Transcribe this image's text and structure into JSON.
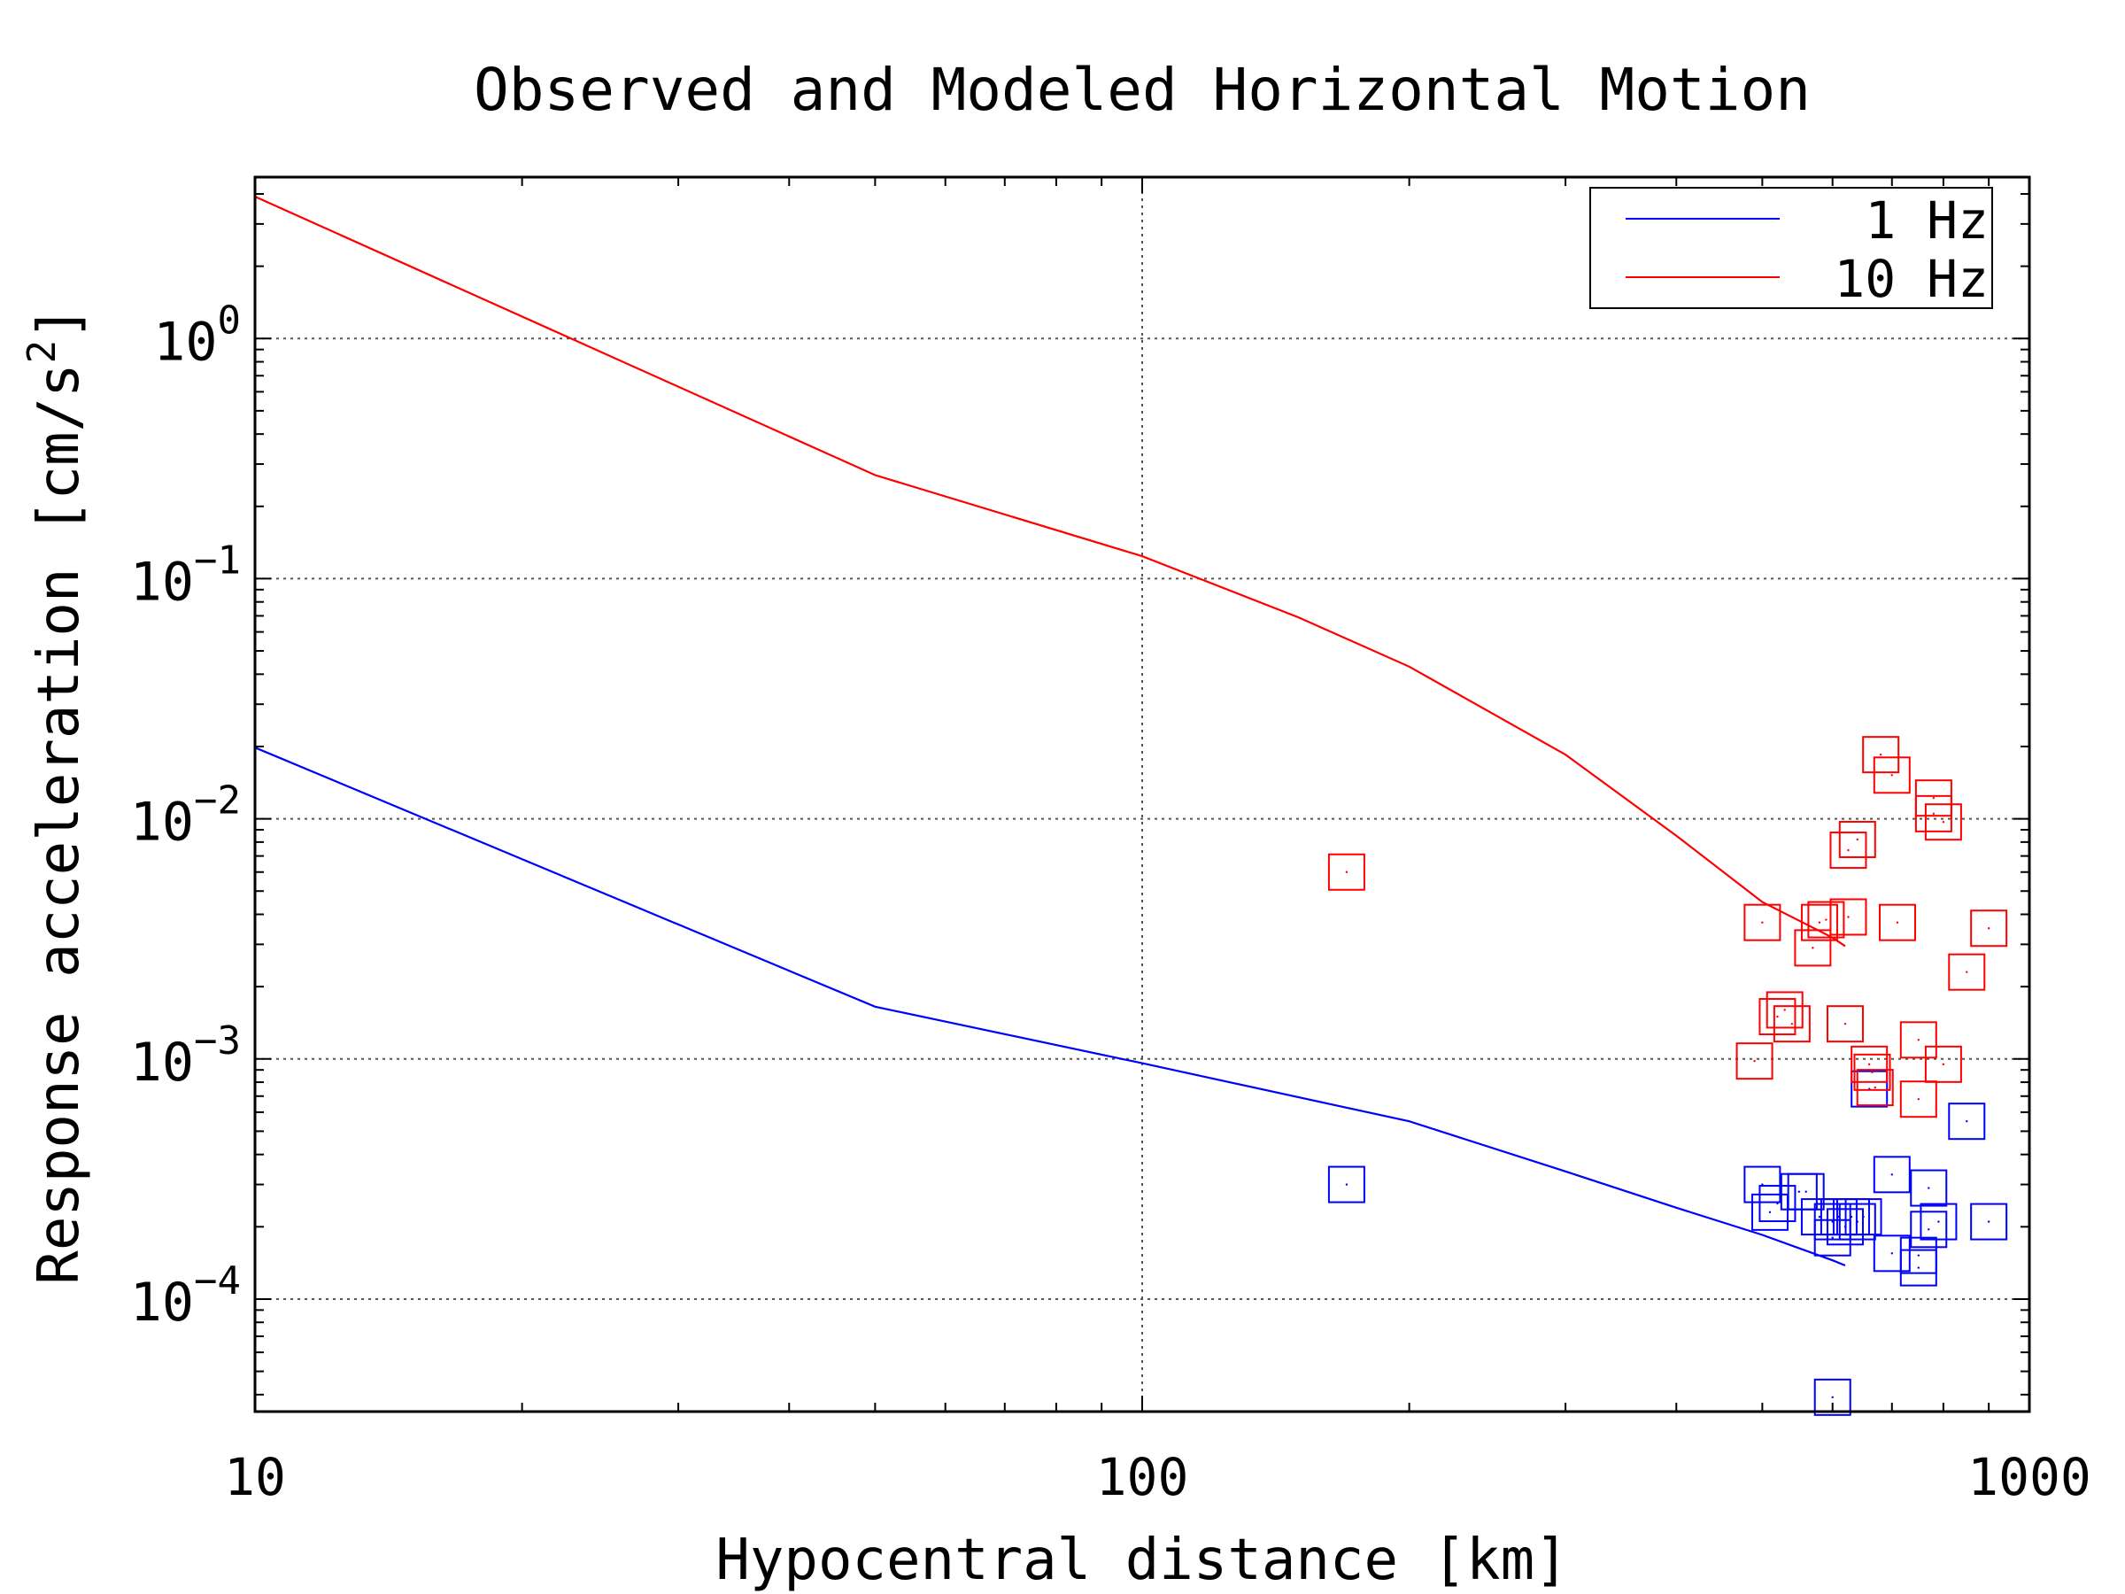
{
  "chart_data": {
    "type": "scatter",
    "title": "Observed and Modeled Horizontal Motion",
    "xlabel": "Hypocentral distance [km]",
    "ylabel_main": "Response acceleration [cm/s",
    "ylabel_sup": "2",
    "ylabel_tail": "]",
    "xscale": "log",
    "yscale": "log",
    "xlim": [
      10,
      1000
    ],
    "ylim": [
      3.4e-05,
      4.7
    ],
    "grid": true,
    "legend_position": "top-right",
    "x_ticks": [
      {
        "value": 10,
        "label": "10"
      },
      {
        "value": 100,
        "label": "100"
      },
      {
        "value": 1000,
        "label": "1000"
      }
    ],
    "y_ticks": [
      {
        "value": 1,
        "base": "10",
        "exp": "0"
      },
      {
        "value": 0.1,
        "base": "10",
        "exp": "−1"
      },
      {
        "value": 0.01,
        "base": "10",
        "exp": "−2"
      },
      {
        "value": 0.001,
        "base": "10",
        "exp": "−3"
      },
      {
        "value": 0.0001,
        "base": "10",
        "exp": "−4"
      }
    ],
    "series": [
      {
        "name": "1 Hz",
        "color": "#0000ff",
        "model": [
          [
            10,
            0.0198
          ],
          [
            50,
            0.00165
          ],
          [
            100,
            0.00096
          ],
          [
            200,
            0.00055
          ],
          [
            300,
            0.00034
          ],
          [
            400,
            0.00024
          ],
          [
            500,
            0.000185
          ],
          [
            600,
            0.000145
          ],
          [
            620,
            0.000138
          ]
        ],
        "observed": [
          [
            170,
            0.0003
          ],
          [
            500,
            0.0003
          ],
          [
            510,
            0.00023
          ],
          [
            520,
            0.00025
          ],
          [
            550,
            0.00028
          ],
          [
            560,
            0.00028
          ],
          [
            580,
            0.00022
          ],
          [
            600,
            0.00021
          ],
          [
            600,
            0.00018
          ],
          [
            610,
            0.00022
          ],
          [
            620,
            0.0002
          ],
          [
            630,
            0.00022
          ],
          [
            640,
            0.00021
          ],
          [
            600,
            3.9e-05
          ],
          [
            650,
            0.00022
          ],
          [
            660,
            0.00075
          ],
          [
            700,
            0.000155
          ],
          [
            700,
            0.00033
          ],
          [
            750,
            0.000135
          ],
          [
            750,
            0.000152
          ],
          [
            770,
            0.000195
          ],
          [
            770,
            0.00029
          ],
          [
            790,
            0.00021
          ],
          [
            850,
            0.00055
          ],
          [
            900,
            0.00021
          ]
        ]
      },
      {
        "name": "10 Hz",
        "color": "#ff0000",
        "model": [
          [
            10,
            3.9
          ],
          [
            50,
            0.27
          ],
          [
            100,
            0.124
          ],
          [
            150,
            0.069
          ],
          [
            200,
            0.043
          ],
          [
            300,
            0.0185
          ],
          [
            400,
            0.0085
          ],
          [
            500,
            0.0045
          ],
          [
            600,
            0.0032
          ],
          [
            620,
            0.00295
          ]
        ],
        "observed": [
          [
            170,
            0.006
          ],
          [
            500,
            0.0037
          ],
          [
            520,
            0.0015
          ],
          [
            530,
            0.0016
          ],
          [
            540,
            0.0014
          ],
          [
            490,
            0.00098
          ],
          [
            570,
            0.0029
          ],
          [
            580,
            0.0037
          ],
          [
            590,
            0.0038
          ],
          [
            620,
            0.0014
          ],
          [
            625,
            0.0039
          ],
          [
            625,
            0.0074
          ],
          [
            640,
            0.0082
          ],
          [
            660,
            0.00095
          ],
          [
            665,
            0.00088
          ],
          [
            670,
            0.00076
          ],
          [
            680,
            0.0185
          ],
          [
            700,
            0.0152
          ],
          [
            710,
            0.0037
          ],
          [
            750,
            0.0012
          ],
          [
            750,
            0.00068
          ],
          [
            780,
            0.0122
          ],
          [
            780,
            0.0105
          ],
          [
            800,
            0.0097
          ],
          [
            800,
            0.00095
          ],
          [
            850,
            0.0023
          ],
          [
            900,
            0.0035
          ]
        ]
      }
    ]
  }
}
